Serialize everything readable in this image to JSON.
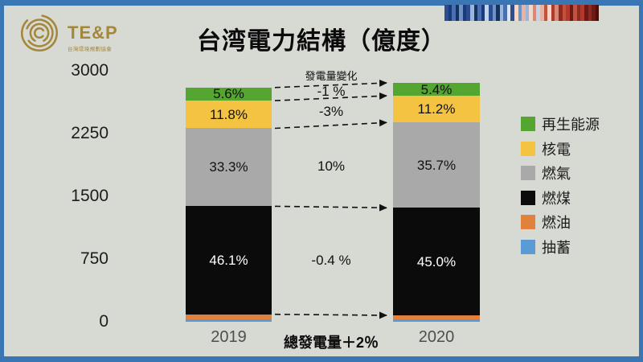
{
  "slide": {
    "background": "#d7d9d3",
    "border_color": "#3b76b4"
  },
  "logo": {
    "text": "TE&P",
    "subtext": "台灣環境規劃協會",
    "color": "#a5873b"
  },
  "warming_stripes": {
    "colors": [
      "#2c4d8f",
      "#1a3a7a",
      "#4a6fb0",
      "#16325f",
      "#6f93c4",
      "#1a3a7a",
      "#2c4d8f",
      "#9ab5d8",
      "#16325f",
      "#4a6fb0",
      "#1a3a7a",
      "#c3d3e8",
      "#2c4d8f",
      "#6f93c4",
      "#16325f",
      "#9ab5d8",
      "#4a6fb0",
      "#dde7f2",
      "#2c4d8f",
      "#f2d7cd",
      "#6f93c4",
      "#e8b3a0",
      "#9ab5d8",
      "#f2d7cd",
      "#d98873",
      "#c3d3e8",
      "#e8b3a0",
      "#c4523a",
      "#f2d7cd",
      "#b03a2e",
      "#d98873",
      "#8f2a22",
      "#c4523a",
      "#b03a2e",
      "#6e1a14",
      "#c4523a",
      "#8f2a22",
      "#b03a2e",
      "#6e1a14",
      "#8f2a22",
      "#6e1a14",
      "#4a100c"
    ]
  },
  "chart_data": {
    "type": "bar",
    "stacked": true,
    "title": "台湾電力結構（億度）",
    "ylabel": "",
    "ylim": [
      0,
      3000
    ],
    "yticks": [
      3000,
      2250,
      1500,
      750,
      0
    ],
    "categories": [
      "2019",
      "2020"
    ],
    "totals": [
      2800,
      2856
    ],
    "series": [
      {
        "name": "抽蓄",
        "color": "#5b9bd5",
        "percents": [
          1.2,
          1.0
        ],
        "labels": [
          null,
          null
        ]
      },
      {
        "name": "燃油",
        "color": "#e0823d",
        "percents": [
          2.0,
          1.7
        ],
        "labels": [
          null,
          null
        ]
      },
      {
        "name": "燃煤",
        "color": "#0b0b0b",
        "percents": [
          46.1,
          45.0
        ],
        "labels": [
          "46.1%",
          "45.0%"
        ],
        "label_color": "#ffffff"
      },
      {
        "name": "燃氣",
        "color": "#a9a9a9",
        "percents": [
          33.3,
          35.7
        ],
        "labels": [
          "33.3%",
          "35.7%"
        ],
        "label_color": "#111111"
      },
      {
        "name": "核電",
        "color": "#f5c342",
        "percents": [
          11.8,
          11.2
        ],
        "labels": [
          "11.8%",
          "11.2%"
        ],
        "label_color": "#111111"
      },
      {
        "name": "再生能源",
        "color": "#55a630",
        "percents": [
          5.6,
          5.4
        ],
        "labels": [
          "5.6%",
          "5.4%"
        ],
        "label_color": "#111111"
      }
    ],
    "legend": [
      "再生能源",
      "核電",
      "燃氣",
      "燃煤",
      "燃油",
      "抽蓄"
    ],
    "annotations": {
      "header": "發電量變化",
      "changes": [
        "-1 %",
        "-3%",
        "10%",
        "-0.4 %"
      ],
      "total_change": "總發電量＋2％"
    }
  }
}
